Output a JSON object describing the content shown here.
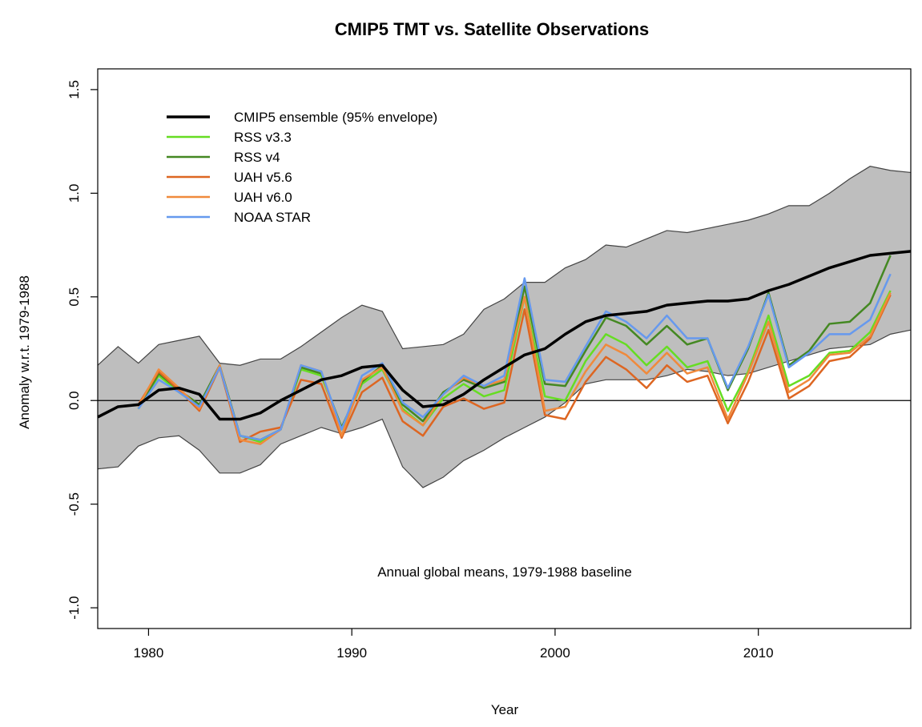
{
  "chart_data": {
    "type": "line",
    "title": "CMIP5 TMT vs. Satellite Observations",
    "xlabel": "Year",
    "ylabel": "Anomaly w.r.t. 1979-1988",
    "annotation": "Annual global means, 1979-1988 baseline",
    "xlim": [
      1977.5,
      2017.5
    ],
    "ylim": [
      -1.1,
      1.6
    ],
    "xticks": [
      1980,
      1990,
      2000,
      2010
    ],
    "yticks": [
      -1.0,
      -0.5,
      0.0,
      0.5,
      1.0,
      1.5
    ],
    "ytick_labels": [
      "-1.0",
      "-0.5",
      "0.0",
      "0.5",
      "1.0",
      "1.5"
    ],
    "zero_line": true,
    "grid": false,
    "legend_position": "top-left",
    "envelope": {
      "x": [
        1977.5,
        1978.5,
        1979.5,
        1980.5,
        1981.5,
        1982.5,
        1983.5,
        1984.5,
        1985.5,
        1986.5,
        1987.5,
        1988.5,
        1989.5,
        1990.5,
        1991.5,
        1992.5,
        1993.5,
        1994.5,
        1995.5,
        1996.5,
        1997.5,
        1998.5,
        1999.5,
        2000.5,
        2001.5,
        2002.5,
        2003.5,
        2004.5,
        2005.5,
        2006.5,
        2007.5,
        2008.5,
        2009.5,
        2010.5,
        2011.5,
        2012.5,
        2013.5,
        2014.5,
        2015.5,
        2016.5,
        2017.5
      ],
      "upper": [
        0.17,
        0.26,
        0.18,
        0.27,
        0.29,
        0.31,
        0.18,
        0.17,
        0.2,
        0.2,
        0.26,
        0.33,
        0.4,
        0.46,
        0.43,
        0.25,
        0.26,
        0.27,
        0.32,
        0.44,
        0.49,
        0.57,
        0.57,
        0.64,
        0.68,
        0.75,
        0.74,
        0.78,
        0.82,
        0.81,
        0.83,
        0.85,
        0.87,
        0.9,
        0.94,
        0.94,
        1.0,
        1.07,
        1.13,
        1.11,
        1.1
      ],
      "lower": [
        -0.33,
        -0.32,
        -0.22,
        -0.18,
        -0.17,
        -0.24,
        -0.35,
        -0.35,
        -0.31,
        -0.21,
        -0.17,
        -0.13,
        -0.16,
        -0.13,
        -0.09,
        -0.32,
        -0.42,
        -0.37,
        -0.29,
        -0.24,
        -0.18,
        -0.13,
        -0.08,
        -0.01,
        0.08,
        0.1,
        0.1,
        0.1,
        0.12,
        0.15,
        0.14,
        0.12,
        0.13,
        0.16,
        0.19,
        0.22,
        0.25,
        0.26,
        0.27,
        0.32,
        0.34
      ]
    },
    "series": [
      {
        "name": "CMIP5 ensemble (95% envelope)",
        "color": "#000000",
        "width": 3.5,
        "x": [
          1977.5,
          1978.5,
          1979.5,
          1980.5,
          1981.5,
          1982.5,
          1983.5,
          1984.5,
          1985.5,
          1986.5,
          1987.5,
          1988.5,
          1989.5,
          1990.5,
          1991.5,
          1992.5,
          1993.5,
          1994.5,
          1995.5,
          1996.5,
          1997.5,
          1998.5,
          1999.5,
          2000.5,
          2001.5,
          2002.5,
          2003.5,
          2004.5,
          2005.5,
          2006.5,
          2007.5,
          2008.5,
          2009.5,
          2010.5,
          2011.5,
          2012.5,
          2013.5,
          2014.5,
          2015.5,
          2016.5,
          2017.5
        ],
        "values": [
          -0.08,
          -0.03,
          -0.02,
          0.05,
          0.06,
          0.03,
          -0.09,
          -0.09,
          -0.06,
          0.0,
          0.05,
          0.1,
          0.12,
          0.16,
          0.17,
          0.05,
          -0.03,
          -0.02,
          0.03,
          0.1,
          0.16,
          0.22,
          0.25,
          0.32,
          0.38,
          0.41,
          0.42,
          0.43,
          0.46,
          0.47,
          0.48,
          0.48,
          0.49,
          0.53,
          0.56,
          0.6,
          0.64,
          0.67,
          0.7,
          0.71,
          0.72
        ]
      },
      {
        "name": "RSS v3.3",
        "color": "#66dd22",
        "width": 2.5,
        "x": [
          1979.5,
          1980.5,
          1981.5,
          1982.5,
          1983.5,
          1984.5,
          1985.5,
          1986.5,
          1987.5,
          1988.5,
          1989.5,
          1990.5,
          1991.5,
          1992.5,
          1993.5,
          1994.5,
          1995.5,
          1996.5,
          1997.5,
          1998.5,
          1999.5,
          2000.5,
          2001.5,
          2002.5,
          2003.5,
          2004.5,
          2005.5,
          2006.5,
          2007.5,
          2008.5,
          2009.5,
          2010.5,
          2011.5,
          2012.5,
          2013.5,
          2014.5,
          2015.5,
          2016.5
        ],
        "values": [
          -0.04,
          0.12,
          0.04,
          -0.03,
          0.16,
          -0.17,
          -0.2,
          -0.14,
          0.15,
          0.12,
          -0.14,
          0.08,
          0.15,
          -0.04,
          -0.12,
          0.01,
          0.08,
          0.02,
          0.05,
          0.5,
          0.02,
          0.0,
          0.19,
          0.32,
          0.27,
          0.17,
          0.26,
          0.16,
          0.19,
          -0.05,
          0.14,
          0.41,
          0.07,
          0.12,
          0.23,
          0.24,
          0.33,
          0.53
        ]
      },
      {
        "name": "RSS v4",
        "color": "#448822",
        "width": 2.5,
        "x": [
          1979.5,
          1980.5,
          1981.5,
          1982.5,
          1983.5,
          1984.5,
          1985.5,
          1986.5,
          1987.5,
          1988.5,
          1989.5,
          1990.5,
          1991.5,
          1992.5,
          1993.5,
          1994.5,
          1995.5,
          1996.5,
          1997.5,
          1998.5,
          1999.5,
          2000.5,
          2001.5,
          2002.5,
          2003.5,
          2004.5,
          2005.5,
          2006.5,
          2007.5,
          2008.5,
          2009.5,
          2010.5,
          2011.5,
          2012.5,
          2013.5,
          2014.5,
          2015.5,
          2016.5
        ],
        "values": [
          -0.04,
          0.13,
          0.05,
          -0.02,
          0.17,
          -0.17,
          -0.19,
          -0.14,
          0.16,
          0.13,
          -0.13,
          0.09,
          0.17,
          -0.02,
          -0.1,
          0.04,
          0.1,
          0.06,
          0.09,
          0.55,
          0.08,
          0.07,
          0.24,
          0.4,
          0.36,
          0.27,
          0.36,
          0.27,
          0.3,
          0.05,
          0.25,
          0.52,
          0.17,
          0.24,
          0.37,
          0.38,
          0.47,
          0.7
        ]
      },
      {
        "name": "UAH v5.6",
        "color": "#dd6622",
        "width": 2.5,
        "x": [
          1979.5,
          1980.5,
          1981.5,
          1982.5,
          1983.5,
          1984.5,
          1985.5,
          1986.5,
          1987.5,
          1988.5,
          1989.5,
          1990.5,
          1991.5,
          1992.5,
          1993.5,
          1994.5,
          1995.5,
          1996.5,
          1997.5,
          1998.5,
          1999.5,
          2000.5,
          2001.5,
          2002.5,
          2003.5,
          2004.5,
          2005.5,
          2006.5,
          2007.5,
          2008.5,
          2009.5,
          2010.5,
          2011.5,
          2012.5,
          2013.5,
          2014.5,
          2015.5,
          2016.5
        ],
        "values": [
          -0.02,
          0.14,
          0.05,
          -0.05,
          0.16,
          -0.2,
          -0.15,
          -0.13,
          0.1,
          0.08,
          -0.18,
          0.04,
          0.11,
          -0.1,
          -0.17,
          -0.03,
          0.01,
          -0.04,
          -0.01,
          0.44,
          -0.07,
          -0.09,
          0.09,
          0.21,
          0.15,
          0.06,
          0.17,
          0.09,
          0.12,
          -0.11,
          0.09,
          0.34,
          0.01,
          0.07,
          0.19,
          0.21,
          0.3,
          0.51
        ]
      },
      {
        "name": "UAH v6.0",
        "color": "#f08a3c",
        "width": 2.5,
        "x": [
          1979.5,
          1980.5,
          1981.5,
          1982.5,
          1983.5,
          1984.5,
          1985.5,
          1986.5,
          1987.5,
          1988.5,
          1989.5,
          1990.5,
          1991.5,
          1992.5,
          1993.5,
          1994.5,
          1995.5,
          1996.5,
          1997.5,
          1998.5,
          1999.5,
          2000.5,
          2001.5,
          2002.5,
          2003.5,
          2004.5,
          2005.5,
          2006.5,
          2007.5,
          2008.5,
          2009.5,
          2010.5,
          2011.5,
          2012.5,
          2013.5,
          2014.5,
          2015.5,
          2016.5
        ],
        "values": [
          -0.03,
          0.15,
          0.06,
          -0.04,
          0.17,
          -0.19,
          -0.21,
          -0.14,
          0.17,
          0.14,
          -0.17,
          0.1,
          0.16,
          -0.05,
          -0.12,
          0.03,
          0.11,
          0.07,
          0.1,
          0.5,
          -0.05,
          -0.03,
          0.14,
          0.27,
          0.22,
          0.13,
          0.23,
          0.13,
          0.16,
          -0.09,
          0.13,
          0.38,
          0.04,
          0.1,
          0.22,
          0.23,
          0.31,
          0.52
        ]
      },
      {
        "name": "NOAA STAR",
        "color": "#6699ee",
        "width": 2.5,
        "x": [
          1979.5,
          1980.5,
          1981.5,
          1982.5,
          1983.5,
          1984.5,
          1985.5,
          1986.5,
          1987.5,
          1988.5,
          1989.5,
          1990.5,
          1991.5,
          1992.5,
          1993.5,
          1994.5,
          1995.5,
          1996.5,
          1997.5,
          1998.5,
          1999.5,
          2000.5,
          2001.5,
          2002.5,
          2003.5,
          2004.5,
          2005.5,
          2006.5,
          2007.5,
          2008.5,
          2009.5,
          2010.5,
          2011.5,
          2012.5,
          2013.5,
          2014.5,
          2015.5,
          2016.5
        ],
        "values": [
          -0.04,
          0.1,
          0.04,
          -0.03,
          0.16,
          -0.17,
          -0.19,
          -0.14,
          0.17,
          0.14,
          -0.14,
          0.12,
          0.18,
          -0.01,
          -0.08,
          0.03,
          0.12,
          0.07,
          0.12,
          0.59,
          0.1,
          0.09,
          0.26,
          0.43,
          0.38,
          0.3,
          0.41,
          0.3,
          0.3,
          0.06,
          0.26,
          0.51,
          0.16,
          0.23,
          0.32,
          0.32,
          0.39,
          0.61
        ]
      }
    ]
  }
}
